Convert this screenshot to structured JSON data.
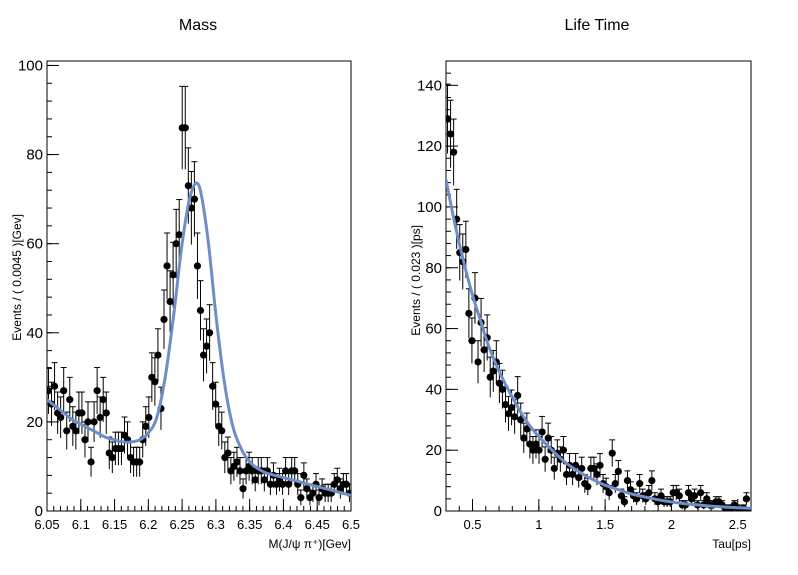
{
  "chart_data": [
    {
      "type": "scatter",
      "title": "Mass",
      "xlabel": "M(J/ψ π⁺)[Gev]",
      "ylabel": "Events / ( 0.0045 )[Gev]",
      "xlim": [
        6.05,
        6.5
      ],
      "ylim": [
        0,
        101
      ],
      "xticks": [
        6.05,
        6.1,
        6.15,
        6.2,
        6.25,
        6.3,
        6.35,
        6.4,
        6.45,
        6.5
      ],
      "yticks": [
        0,
        20,
        40,
        60,
        80,
        100
      ],
      "series": [
        {
          "kind": "points-with-errors",
          "x": [
            6.0522,
            6.0567,
            6.0612,
            6.0657,
            6.0702,
            6.0747,
            6.0792,
            6.0837,
            6.0882,
            6.0927,
            6.0972,
            6.1017,
            6.1062,
            6.1107,
            6.1152,
            6.1197,
            6.1242,
            6.1287,
            6.1332,
            6.1377,
            6.1422,
            6.1467,
            6.1512,
            6.1557,
            6.1602,
            6.1647,
            6.1692,
            6.1737,
            6.1782,
            6.1827,
            6.1872,
            6.1917,
            6.1962,
            6.2007,
            6.2052,
            6.2097,
            6.2142,
            6.2187,
            6.2232,
            6.2277,
            6.2322,
            6.2367,
            6.2412,
            6.2457,
            6.2502,
            6.2547,
            6.2592,
            6.2637,
            6.2682,
            6.2727,
            6.2772,
            6.2817,
            6.2862,
            6.2907,
            6.2952,
            6.2997,
            6.3042,
            6.3087,
            6.3132,
            6.3177,
            6.3222,
            6.3267,
            6.3312,
            6.3357,
            6.3402,
            6.3447,
            6.3492,
            6.3537,
            6.3582,
            6.3627,
            6.3672,
            6.3717,
            6.3762,
            6.3807,
            6.3852,
            6.3897,
            6.3942,
            6.3987,
            6.4032,
            6.4077,
            6.4122,
            6.4167,
            6.4212,
            6.4257,
            6.4302,
            6.4347,
            6.4392,
            6.4437,
            6.4482,
            6.4527,
            6.4572,
            6.4617,
            6.4662,
            6.4707,
            6.4752,
            6.4797,
            6.4842,
            6.4887,
            6.4932,
            6.4977
          ],
          "y": [
            27,
            24,
            28,
            22,
            21,
            27,
            18,
            25,
            19,
            18,
            22,
            22,
            16,
            20,
            11,
            20,
            27,
            21,
            25,
            22,
            13,
            12,
            14,
            14,
            14,
            17,
            16,
            12,
            11,
            11,
            11,
            16,
            19,
            21,
            30,
            29,
            35,
            23,
            43,
            55,
            47,
            53,
            60,
            62,
            86,
            86,
            73,
            68,
            70,
            55,
            45,
            35,
            37,
            40,
            28,
            24,
            19,
            18,
            12,
            13,
            9,
            10,
            11,
            9,
            5,
            9,
            10,
            9,
            7,
            9,
            9,
            7,
            9,
            6,
            8,
            6,
            7,
            6,
            9,
            6,
            9,
            9,
            6,
            3,
            8,
            5,
            3,
            4,
            6,
            3,
            5,
            4,
            4,
            4,
            6,
            7,
            5,
            6,
            6,
            4
          ],
          "err": [
            5.2,
            4.9,
            5.3,
            4.7,
            4.6,
            5.2,
            4.2,
            5.0,
            4.4,
            4.2,
            4.7,
            4.7,
            4.0,
            4.5,
            3.3,
            4.5,
            5.2,
            4.6,
            5.0,
            4.7,
            3.6,
            3.5,
            3.7,
            3.7,
            3.7,
            4.1,
            4.0,
            3.5,
            3.3,
            3.3,
            3.3,
            4.0,
            4.4,
            4.6,
            5.5,
            5.4,
            5.9,
            4.8,
            6.6,
            7.4,
            6.9,
            7.3,
            7.7,
            7.9,
            9.3,
            9.3,
            8.5,
            8.2,
            8.4,
            7.4,
            6.7,
            5.9,
            6.1,
            6.3,
            5.3,
            4.9,
            4.4,
            4.2,
            3.5,
            3.6,
            3.0,
            3.2,
            3.3,
            3.0,
            2.2,
            3.0,
            3.2,
            3.0,
            2.6,
            3.0,
            3.0,
            2.6,
            3.0,
            2.4,
            2.8,
            2.4,
            2.6,
            2.4,
            3.0,
            2.4,
            3.0,
            3.0,
            2.4,
            1.7,
            2.8,
            2.2,
            1.7,
            2.0,
            2.4,
            1.7,
            2.2,
            2.0,
            2.0,
            2.0,
            2.4,
            2.6,
            2.2,
            2.4,
            2.4,
            2.0
          ]
        },
        {
          "kind": "fit-curve",
          "color": "#6d8ec9",
          "x": [
            6.05,
            6.0625,
            6.075,
            6.0875,
            6.1,
            6.1125,
            6.125,
            6.1375,
            6.15,
            6.1625,
            6.175,
            6.1875,
            6.2,
            6.2125,
            6.225,
            6.2375,
            6.25,
            6.2625,
            6.275,
            6.2875,
            6.3,
            6.3125,
            6.325,
            6.3375,
            6.35,
            6.3625,
            6.375,
            6.3875,
            6.4,
            6.4125,
            6.425,
            6.4375,
            6.45,
            6.4625,
            6.475,
            6.4875,
            6.5
          ],
          "y": [
            25,
            23.5,
            22,
            20.5,
            19.5,
            18.5,
            17.5,
            16.5,
            16,
            15.5,
            15.5,
            16,
            17.5,
            21,
            30,
            44,
            60,
            71,
            73,
            62,
            44,
            29,
            19,
            14,
            11,
            9.5,
            8.5,
            8,
            7.5,
            7,
            6.5,
            6,
            5.5,
            5,
            4.5,
            4,
            3.5
          ]
        }
      ]
    },
    {
      "type": "scatter",
      "title": "Life Time",
      "xlabel": "Tau[ps]",
      "ylabel": "Events / ( 0.023 )[ps]",
      "xlim": [
        0.3,
        2.6
      ],
      "ylim": [
        0,
        148
      ],
      "xticks": [
        0.5,
        1,
        1.5,
        2,
        2.5
      ],
      "yticks": [
        0,
        20,
        40,
        60,
        80,
        100,
        120,
        140
      ],
      "series": [
        {
          "kind": "points-with-errors",
          "x": [
            0.3115,
            0.3345,
            0.3575,
            0.3805,
            0.4035,
            0.4265,
            0.4495,
            0.4725,
            0.4955,
            0.5185,
            0.5415,
            0.5645,
            0.5875,
            0.6105,
            0.6335,
            0.6565,
            0.6795,
            0.7025,
            0.7255,
            0.7485,
            0.7715,
            0.7945,
            0.8175,
            0.8405,
            0.8635,
            0.8865,
            0.9095,
            0.9325,
            0.9555,
            0.9785,
            1.0015,
            1.0245,
            1.0475,
            1.0705,
            1.0935,
            1.1165,
            1.1395,
            1.1625,
            1.1855,
            1.2085,
            1.2315,
            1.2545,
            1.2775,
            1.3005,
            1.3235,
            1.3465,
            1.3695,
            1.3925,
            1.4155,
            1.4385,
            1.4615,
            1.4845,
            1.5075,
            1.5305,
            1.5535,
            1.5765,
            1.5995,
            1.6225,
            1.6455,
            1.6685,
            1.6915,
            1.7145,
            1.7375,
            1.7605,
            1.7835,
            1.8065,
            1.8295,
            1.8525,
            1.8755,
            1.8985,
            1.9215,
            1.9445,
            1.9675,
            1.9905,
            2.0135,
            2.0365,
            2.0595,
            2.0825,
            2.1055,
            2.1285,
            2.1515,
            2.1745,
            2.1975,
            2.2205,
            2.2435,
            2.2665,
            2.2895,
            2.3125,
            2.3355,
            2.3585,
            2.3815,
            2.4045,
            2.4275,
            2.4505,
            2.4735,
            2.4965,
            2.5195,
            2.5425,
            2.5655,
            2.5885
          ],
          "y": [
            129,
            124,
            118,
            96,
            85,
            82,
            86,
            65,
            56,
            70,
            49,
            62,
            53,
            57,
            44,
            46,
            49,
            42,
            40,
            35,
            32,
            34,
            31,
            38,
            30,
            24,
            27,
            22,
            20,
            22,
            20,
            26,
            17,
            24,
            20,
            14,
            19,
            17,
            20,
            12,
            15,
            12,
            15,
            11,
            14,
            9,
            8,
            14,
            14,
            12,
            15,
            9,
            8,
            6,
            19,
            9,
            13,
            5,
            3,
            10,
            7,
            5,
            4,
            9,
            5,
            4,
            6,
            10,
            4,
            3,
            5,
            3,
            3,
            3,
            6,
            6,
            5,
            2,
            2,
            6,
            4,
            5,
            2,
            6,
            2,
            4,
            2,
            2,
            3,
            3,
            2,
            1,
            1,
            1,
            2,
            1,
            0,
            1,
            4,
            0
          ],
          "err": [
            11.4,
            11.1,
            10.9,
            9.8,
            9.2,
            9.1,
            9.3,
            8.1,
            7.5,
            8.4,
            7.0,
            7.9,
            7.3,
            7.5,
            6.6,
            6.8,
            7.0,
            6.5,
            6.3,
            5.9,
            5.7,
            5.8,
            5.6,
            6.2,
            5.5,
            4.9,
            5.2,
            4.7,
            4.5,
            4.7,
            4.5,
            5.1,
            4.1,
            4.9,
            4.5,
            3.7,
            4.4,
            4.1,
            4.5,
            3.5,
            3.9,
            3.5,
            3.9,
            3.3,
            3.7,
            3.0,
            2.8,
            3.7,
            3.7,
            3.5,
            3.9,
            3.0,
            2.8,
            2.4,
            4.4,
            3.0,
            3.6,
            2.2,
            1.7,
            3.2,
            2.6,
            2.2,
            2.0,
            3.0,
            2.2,
            2.0,
            2.4,
            3.2,
            2.0,
            1.7,
            2.2,
            1.7,
            1.7,
            1.7,
            2.4,
            2.4,
            2.2,
            1.4,
            1.4,
            2.4,
            2.0,
            2.2,
            1.4,
            2.4,
            1.4,
            2.0,
            1.4,
            1.4,
            1.7,
            1.7,
            1.4,
            1.0,
            1.0,
            1.0,
            1.4,
            1.0,
            0.5,
            1.0,
            2.0,
            0.5
          ]
        },
        {
          "kind": "fit-curve",
          "color": "#6d8ec9",
          "x": [
            0.3,
            0.35,
            0.4,
            0.45,
            0.5,
            0.55,
            0.6,
            0.65,
            0.7,
            0.75,
            0.8,
            0.85,
            0.9,
            0.95,
            1.0,
            1.1,
            1.2,
            1.3,
            1.4,
            1.5,
            1.6,
            1.7,
            1.8,
            1.9,
            2.0,
            2.1,
            2.2,
            2.3,
            2.4,
            2.5,
            2.6
          ],
          "y": [
            109,
            98,
            88,
            79,
            71,
            64,
            57,
            51,
            46,
            41.5,
            37.5,
            33.5,
            30,
            27,
            24.5,
            20,
            16,
            13,
            10.5,
            8.5,
            7,
            5.6,
            4.6,
            3.7,
            3,
            2.4,
            2,
            1.6,
            1.3,
            1.1,
            0.9
          ]
        }
      ]
    }
  ]
}
